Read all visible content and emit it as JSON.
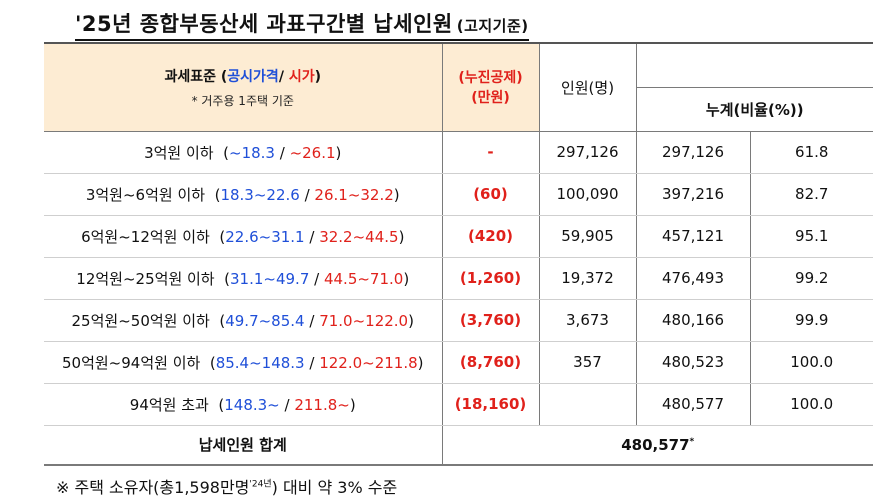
{
  "title": {
    "main": "'25년 종합부동산세 과표구간별 납세인원",
    "note": "(고지기준)"
  },
  "header": {
    "col1_label": "과세표준 (",
    "col1_blue": "공시가격",
    "col1_sep": "/ ",
    "col1_red": "시가",
    "col1_close": ")",
    "col1_sub": "* 거주용 1주택 기준",
    "col2_line1": "(누진공제)",
    "col2_line2": "(만원)",
    "col3": "인원(명)",
    "col4": "누계(비율(%))"
  },
  "rows": [
    {
      "label": "3억원 이하",
      "blue": "~18.3",
      "red": "~26.1",
      "deduct": "-",
      "count": "297,126",
      "cum": "297,126",
      "pct": "61.8"
    },
    {
      "label": "3억원~6억원 이하",
      "blue": "18.3~22.6",
      "red": "26.1~32.2",
      "deduct": "(60)",
      "count": "100,090",
      "cum": "397,216",
      "pct": "82.7"
    },
    {
      "label": "6억원~12억원 이하",
      "blue": "22.6~31.1",
      "red": "32.2~44.5",
      "deduct": "(420)",
      "count": "59,905",
      "cum": "457,121",
      "pct": "95.1"
    },
    {
      "label": "12억원~25억원 이하",
      "blue": "31.1~49.7",
      "red": "44.5~71.0",
      "deduct": "(1,260)",
      "count": "19,372",
      "cum": "476,493",
      "pct": "99.2"
    },
    {
      "label": "25억원~50억원 이하",
      "blue": "49.7~85.4",
      "red": "71.0~122.0",
      "deduct": "(3,760)",
      "count": "3,673",
      "cum": "480,166",
      "pct": "99.9"
    },
    {
      "label": "50억원~94억원 이하",
      "blue": "85.4~148.3",
      "red": "122.0~211.8",
      "deduct": "(8,760)",
      "count": "357",
      "cum": "480,523",
      "pct": "100.0"
    },
    {
      "label": "94억원 초과",
      "blue": "148.3~",
      "red": "211.8~",
      "deduct": "(18,160)",
      "count": "",
      "cum": "480,577",
      "pct": "100.0"
    }
  ],
  "total": {
    "label": "납세인원 합계",
    "value": "480,577",
    "mark": "*"
  },
  "footer": {
    "text_a": "※ 주택 소유자(총1,598만명",
    "sup": "'24년",
    "text_b": ") 대비 약 3% 수준"
  }
}
